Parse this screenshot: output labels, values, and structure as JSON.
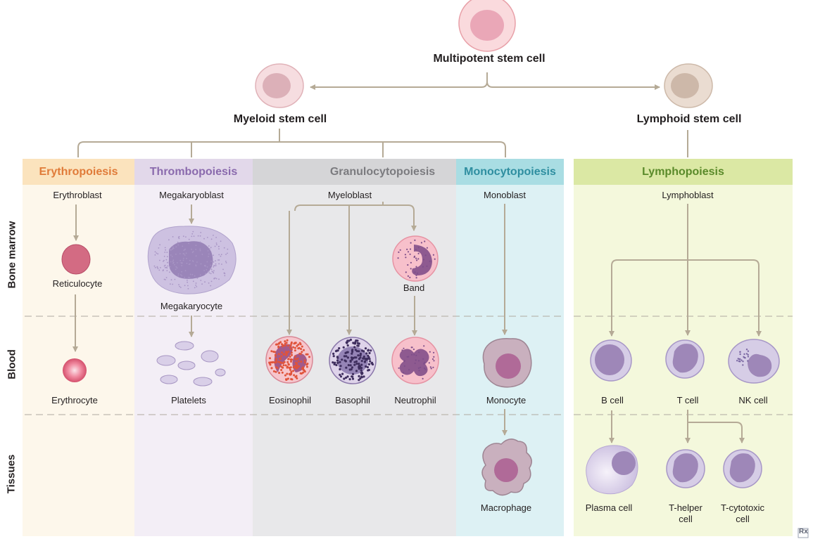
{
  "top": {
    "multipotent": "Multipotent stem cell",
    "myeloid": "Myeloid stem cell",
    "lymphoid": "Lymphoid stem cell"
  },
  "columns": {
    "erythropoiesis": "Erythropoiesis",
    "thrombopoiesis": "Thrombopoiesis",
    "granulocytopoiesis": "Granulocytopoiesis",
    "monocytopoiesis": "Monocytopoiesis",
    "lymphopoiesis": "Lymphopoiesis"
  },
  "rows": {
    "bone_marrow": "Bone marrow",
    "blood": "Blood",
    "tissues": "Tissues"
  },
  "cells": {
    "erythroblast": "Erythroblast",
    "reticulocyte": "Reticulocyte",
    "erythrocyte": "Erythrocyte",
    "megakaryoblast": "Megakaryoblast",
    "megakaryocyte": "Megakaryocyte",
    "platelets": "Platelets",
    "myeloblast": "Myeloblast",
    "band": "Band",
    "eosinophil": "Eosinophil",
    "basophil": "Basophil",
    "neutrophil": "Neutrophil",
    "monoblast": "Monoblast",
    "monocyte": "Monocyte",
    "macrophage": "Macrophage",
    "lymphoblast": "Lymphoblast",
    "b_cell": "B cell",
    "t_cell": "T cell",
    "nk_cell": "NK cell",
    "plasma_cell": "Plasma cell",
    "t_helper": "T-helper cell",
    "t_cytotoxic": "T-cytotoxic cell"
  },
  "logo": "Rx",
  "colors": {
    "erythro_header": "#fbe3bd",
    "erythro_bg": "#fdf7eb",
    "erythro_text": "#e07b39",
    "thrombo_header": "#e2d8ea",
    "thrombo_bg": "#f3eef6",
    "thrombo_text": "#8a6aad",
    "granulo_header": "#d5d5d7",
    "granulo_bg": "#e8e8ea",
    "granulo_text": "#7b7b7f",
    "mono_header": "#a9dde3",
    "mono_bg": "#ddf1f4",
    "mono_text": "#2e8ea0",
    "lympho_header": "#dbe8a4",
    "lympho_bg": "#f4f8dc",
    "lympho_text": "#5a8a2a",
    "arrow": "#b5aa96"
  }
}
